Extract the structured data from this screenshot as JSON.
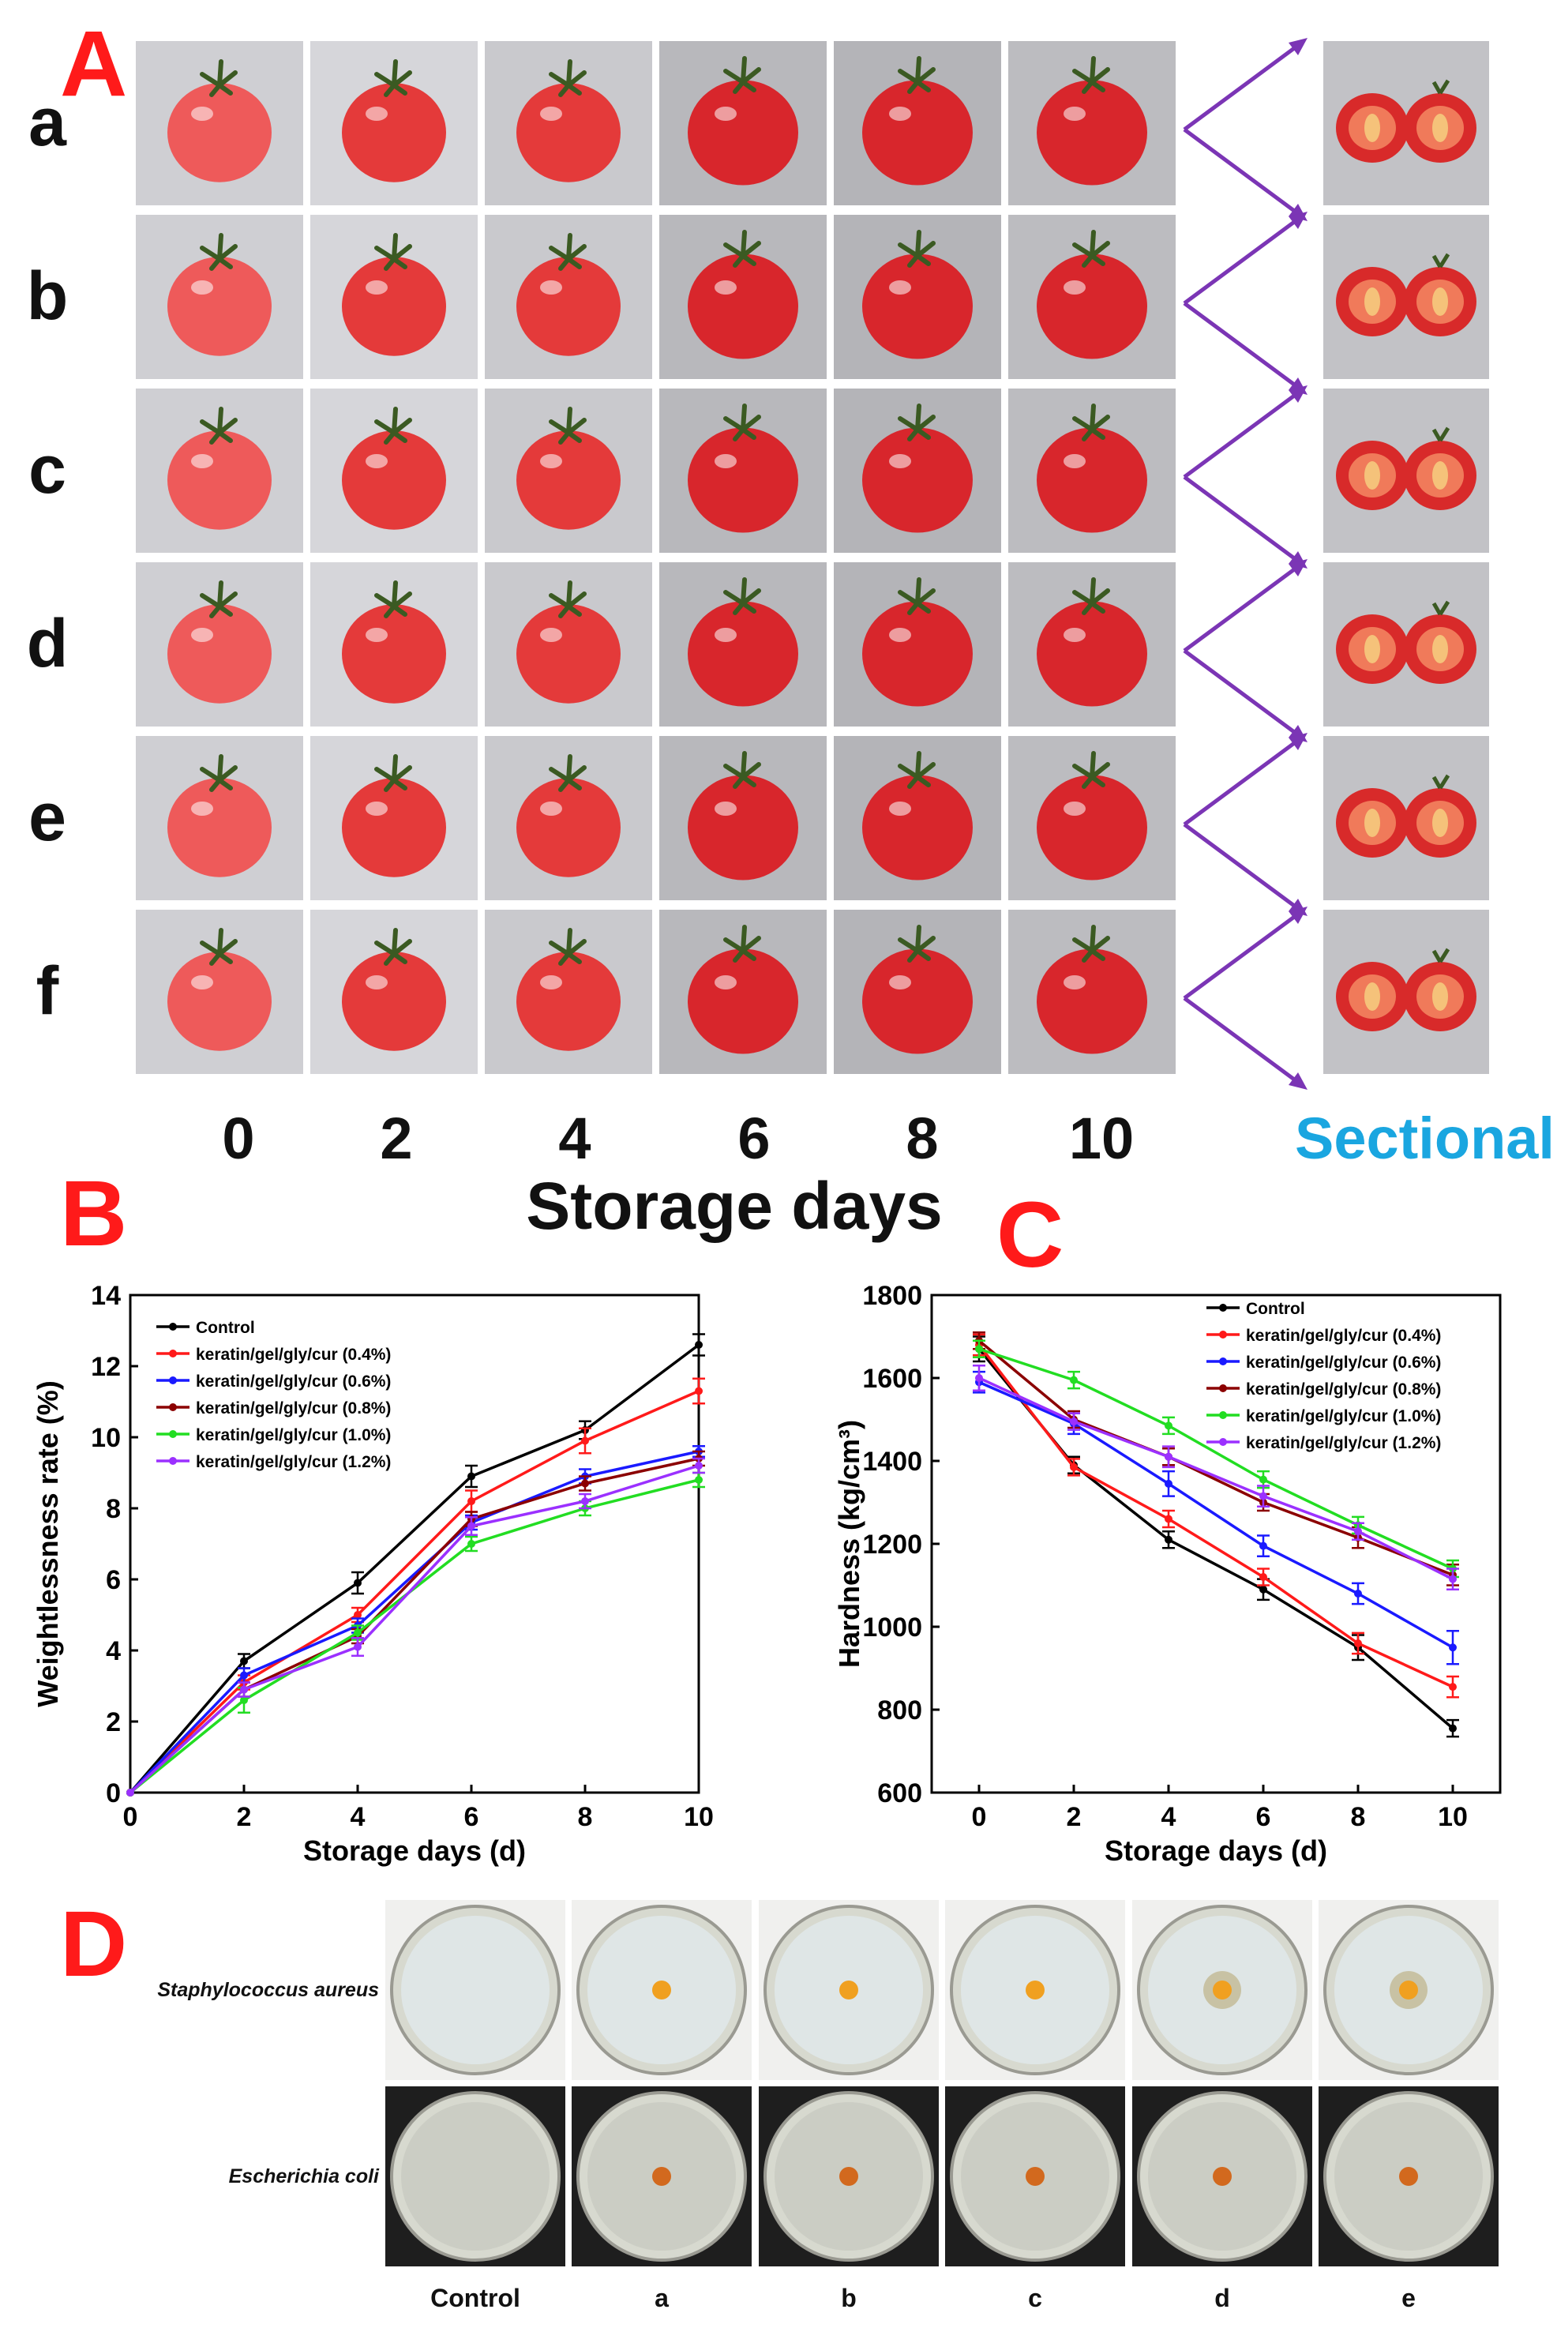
{
  "panels": {
    "A": "A",
    "B": "B",
    "C": "C",
    "D": "D"
  },
  "panelA": {
    "row_labels": [
      "a",
      "b",
      "c",
      "d",
      "e",
      "f"
    ],
    "day_labels": [
      "0",
      "2",
      "4",
      "6",
      "8",
      "10"
    ],
    "sectional_label": "Sectional",
    "axis_title": "Storage days",
    "colors": {
      "arrow": "#7b35b5",
      "sectional": "#1aa6e0"
    }
  },
  "panelD": {
    "row_labels": [
      "Staphylococcus aureus",
      "Escherichia coli"
    ],
    "col_labels": [
      "Control",
      "a",
      "b",
      "c",
      "d",
      "e"
    ]
  },
  "chart_data": [
    {
      "type": "line",
      "panel": "B",
      "xlabel": "Storage days (d)",
      "ylabel": "Weightlessness rate (%)",
      "xlim": [
        0,
        10
      ],
      "ylim": [
        0,
        14
      ],
      "xticks": [
        0,
        2,
        4,
        6,
        8,
        10
      ],
      "yticks": [
        0,
        2,
        4,
        6,
        8,
        10,
        12,
        14
      ],
      "x": [
        0,
        2,
        4,
        6,
        8,
        10
      ],
      "legend_position": "top-left",
      "grid": false,
      "series": [
        {
          "name": "Control",
          "color": "#000000",
          "values": [
            0,
            3.7,
            5.9,
            8.9,
            10.2,
            12.6
          ],
          "err": [
            0,
            0.2,
            0.3,
            0.3,
            0.25,
            0.3
          ]
        },
        {
          "name": "keratin/gel/gly/cur (0.4%)",
          "color": "#ff1a1a",
          "values": [
            0,
            3.1,
            5.0,
            8.2,
            9.9,
            11.3
          ],
          "err": [
            0,
            0.2,
            0.2,
            0.3,
            0.35,
            0.35
          ]
        },
        {
          "name": "keratin/gel/gly/cur (0.6%)",
          "color": "#1a1aff",
          "values": [
            0,
            3.3,
            4.7,
            7.6,
            8.9,
            9.6
          ],
          "err": [
            0,
            0.2,
            0.2,
            0.2,
            0.2,
            0.15
          ]
        },
        {
          "name": "keratin/gel/gly/cur (0.8%)",
          "color": "#8b0000",
          "values": [
            0,
            2.9,
            4.4,
            7.7,
            8.7,
            9.4
          ],
          "err": [
            0,
            0.2,
            0.2,
            0.2,
            0.2,
            0.2
          ]
        },
        {
          "name": "keratin/gel/gly/cur (1.0%)",
          "color": "#22dd22",
          "values": [
            0,
            2.6,
            4.5,
            7.0,
            8.0,
            8.8
          ],
          "err": [
            0,
            0.35,
            0.2,
            0.2,
            0.2,
            0.2
          ]
        },
        {
          "name": "keratin/gel/gly/cur (1.2%)",
          "color": "#9b30ff",
          "values": [
            0,
            2.9,
            4.1,
            7.5,
            8.2,
            9.2
          ],
          "err": [
            0,
            0.2,
            0.25,
            0.25,
            0.2,
            0.2
          ]
        }
      ]
    },
    {
      "type": "line",
      "panel": "C",
      "xlabel": "Storage days (d)",
      "ylabel": "Hardness (kg/cm³)",
      "xlim": [
        -1,
        11
      ],
      "ylim": [
        600,
        1800
      ],
      "xticks": [
        0,
        2,
        4,
        6,
        8,
        10
      ],
      "yticks": [
        600,
        800,
        1000,
        1200,
        1400,
        1600,
        1800
      ],
      "x": [
        0,
        2,
        4,
        6,
        8,
        10
      ],
      "legend_position": "top-right",
      "grid": false,
      "series": [
        {
          "name": "Control",
          "color": "#000000",
          "values": [
            1670,
            1390,
            1210,
            1090,
            950,
            755
          ],
          "err": [
            30,
            20,
            20,
            25,
            30,
            20
          ]
        },
        {
          "name": "keratin/gel/gly/cur (0.4%)",
          "color": "#ff1a1a",
          "values": [
            1680,
            1385,
            1260,
            1120,
            960,
            855
          ],
          "err": [
            25,
            20,
            20,
            20,
            25,
            25
          ]
        },
        {
          "name": "keratin/gel/gly/cur (0.6%)",
          "color": "#1a1aff",
          "values": [
            1590,
            1490,
            1345,
            1195,
            1080,
            950
          ],
          "err": [
            25,
            25,
            30,
            25,
            25,
            40
          ]
        },
        {
          "name": "keratin/gel/gly/cur (0.8%)",
          "color": "#8b0000",
          "values": [
            1690,
            1500,
            1410,
            1300,
            1215,
            1125
          ],
          "err": [
            20,
            20,
            20,
            20,
            25,
            25
          ]
        },
        {
          "name": "keratin/gel/gly/cur (1.0%)",
          "color": "#22dd22",
          "values": [
            1670,
            1595,
            1485,
            1355,
            1245,
            1140
          ],
          "err": [
            20,
            20,
            20,
            20,
            20,
            20
          ]
        },
        {
          "name": "keratin/gel/gly/cur (1.2%)",
          "color": "#9b30ff",
          "values": [
            1600,
            1495,
            1410,
            1315,
            1230,
            1115
          ],
          "err": [
            30,
            20,
            25,
            25,
            20,
            25
          ]
        }
      ]
    }
  ]
}
